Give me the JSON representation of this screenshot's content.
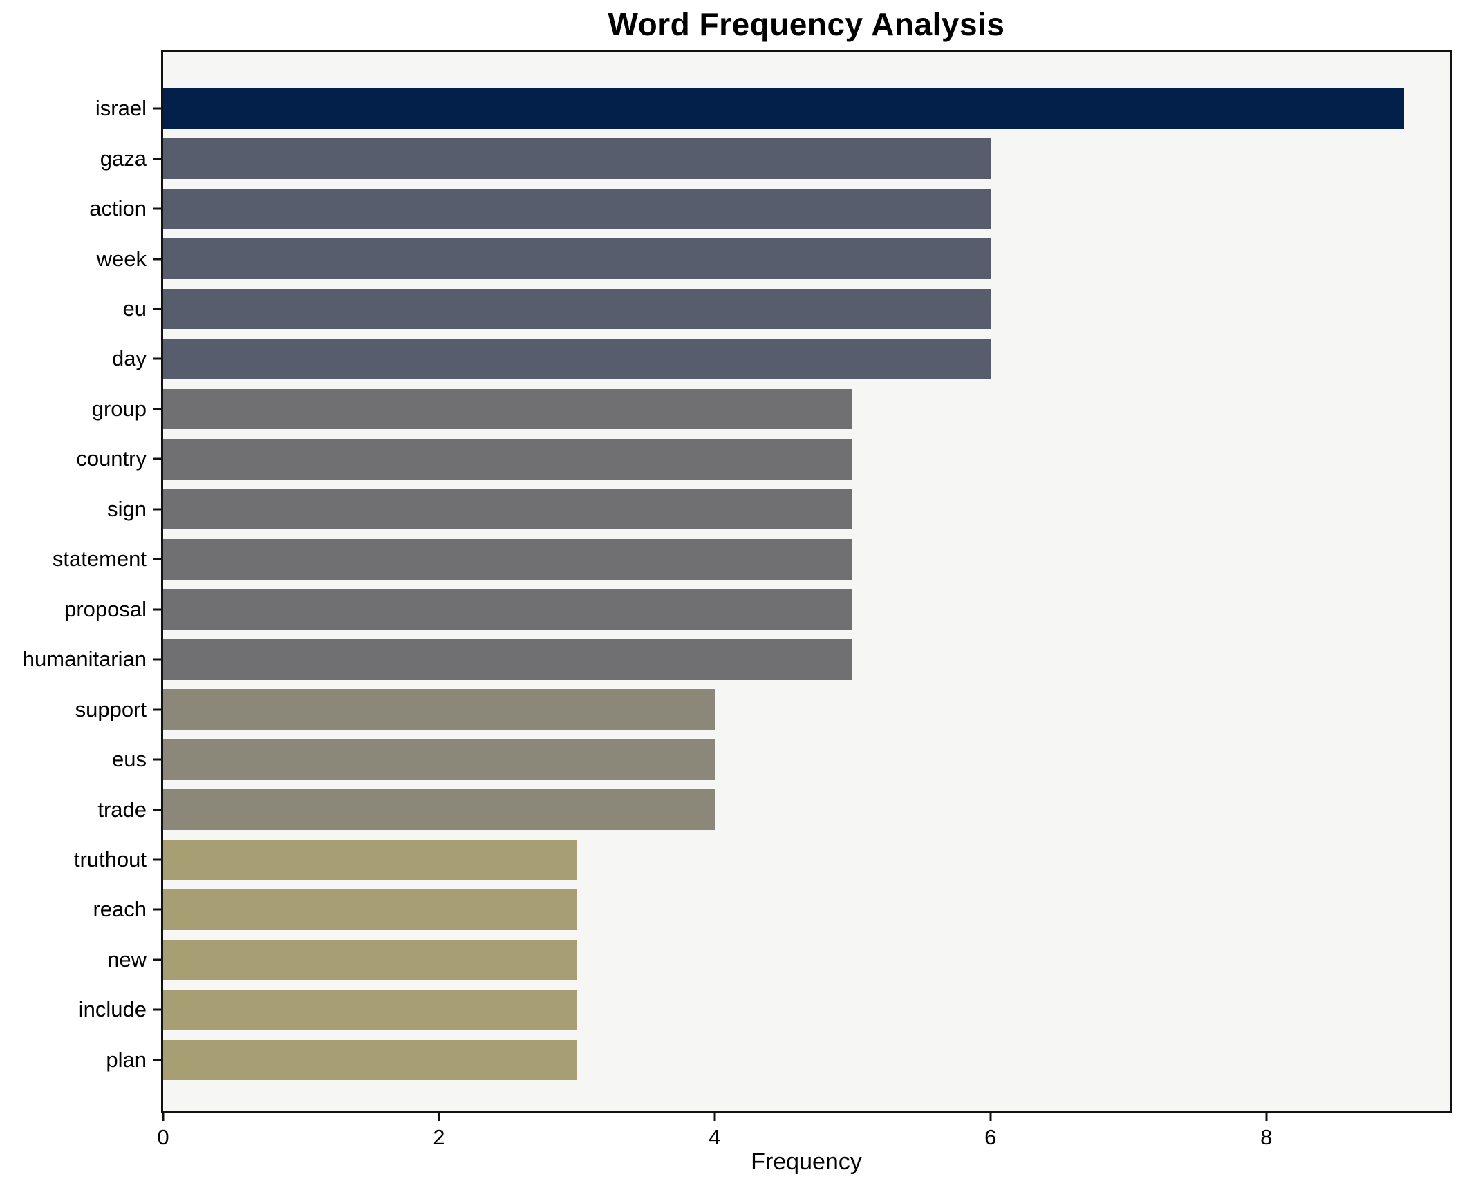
{
  "title": "Word Frequency Analysis",
  "chart_data": {
    "type": "bar",
    "orientation": "horizontal",
    "title": "Word Frequency Analysis",
    "xlabel": "Frequency",
    "ylabel": "",
    "xlim": [
      0,
      9.33
    ],
    "xticks": [
      0,
      2,
      4,
      6,
      8
    ],
    "grid": false,
    "legend": false,
    "plot_background": "#f6f6f4",
    "spine_color": "#121212",
    "categories": [
      "israel",
      "gaza",
      "action",
      "week",
      "eu",
      "day",
      "group",
      "country",
      "sign",
      "statement",
      "proposal",
      "humanitarian",
      "support",
      "eus",
      "trade",
      "truthout",
      "reach",
      "new",
      "include",
      "plan"
    ],
    "values": [
      9,
      6,
      6,
      6,
      6,
      6,
      5,
      5,
      5,
      5,
      5,
      5,
      4,
      4,
      4,
      3,
      3,
      3,
      3,
      3
    ],
    "bar_colors": [
      "#02204a",
      "#575d6c",
      "#575d6c",
      "#575d6c",
      "#575d6c",
      "#575d6c",
      "#706f71",
      "#706f71",
      "#706f71",
      "#706f71",
      "#706f71",
      "#706f71",
      "#8b887a",
      "#8b887a",
      "#8b887a",
      "#a79f73",
      "#a79f73",
      "#a79f73",
      "#a79f73",
      "#a79f73"
    ]
  }
}
